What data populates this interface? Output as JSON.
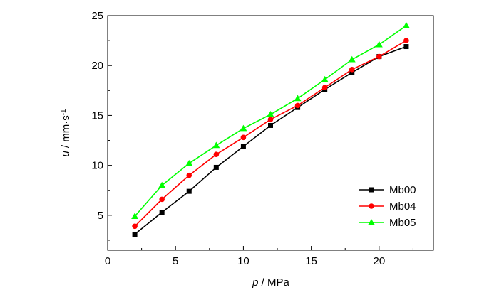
{
  "chart_data": {
    "type": "line",
    "title": "",
    "xlabel": {
      "var": "p",
      "unit": " / MPa"
    },
    "ylabel": {
      "var": "u",
      "unit": " / mm·s",
      "sup": "-1"
    },
    "xlim": [
      0,
      24
    ],
    "ylim": [
      1.5,
      25
    ],
    "xticks": [
      0,
      5,
      10,
      15,
      20
    ],
    "yticks": [
      5,
      10,
      15,
      20,
      25
    ],
    "grid": false,
    "legend_position": "bottom-right",
    "x": [
      2,
      4,
      6,
      8,
      10,
      12,
      14,
      16,
      18,
      20,
      22
    ],
    "series": [
      {
        "name": "Mb00",
        "marker": "square",
        "color": "#000000",
        "values": [
          3.1,
          5.3,
          7.4,
          9.8,
          11.9,
          14.0,
          15.8,
          17.6,
          19.3,
          20.9,
          21.9
        ]
      },
      {
        "name": "Mb04",
        "marker": "circle",
        "color": "#ff0000",
        "values": [
          3.9,
          6.6,
          9.0,
          11.1,
          12.8,
          14.6,
          16.0,
          17.8,
          19.6,
          20.9,
          22.5
        ]
      },
      {
        "name": "Mb05",
        "marker": "triangle",
        "color": "#00ff00",
        "values": [
          4.9,
          8.0,
          10.2,
          12.0,
          13.7,
          15.1,
          16.7,
          18.6,
          20.6,
          22.1,
          24.0
        ]
      }
    ]
  }
}
